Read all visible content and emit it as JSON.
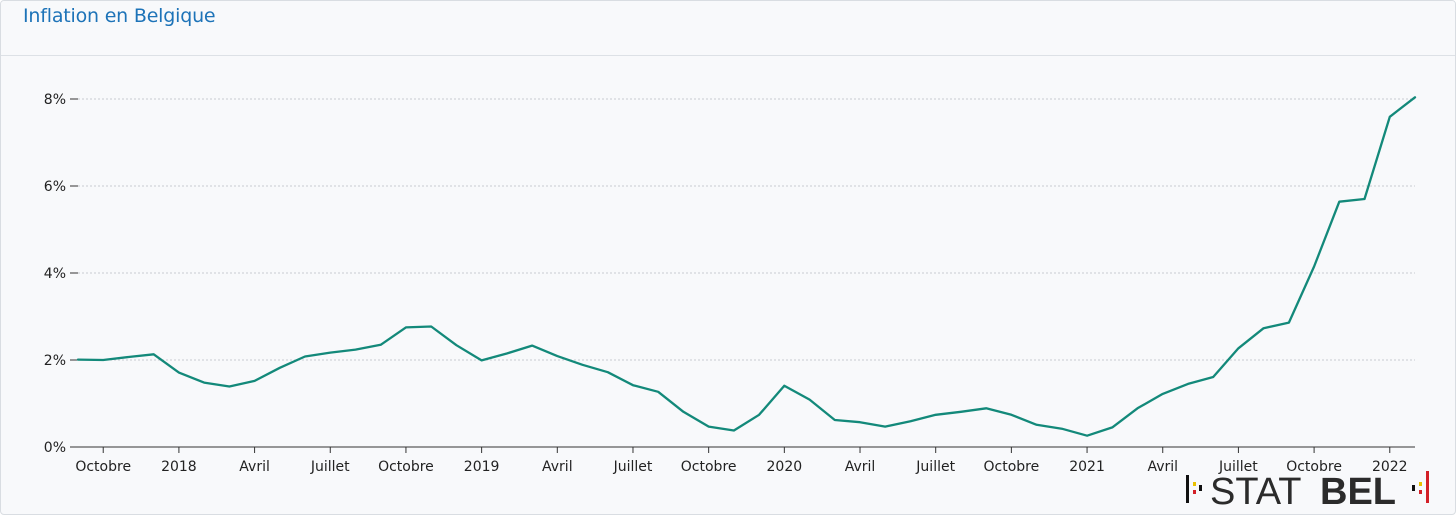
{
  "title": "Inflation en Belgique",
  "colors": {
    "line": "#13897a",
    "title": "#1d73b8",
    "grid": "#c9ccd0"
  },
  "logo": {
    "text_light": "STAT",
    "text_bold": "BEL"
  },
  "chart_data": {
    "type": "line",
    "title": "Inflation en Belgique",
    "xlabel": "",
    "ylabel": "",
    "ylim": [
      0,
      8
    ],
    "yticks": [
      {
        "value": 0,
        "label": "0%"
      },
      {
        "value": 2,
        "label": "2%"
      },
      {
        "value": 4,
        "label": "4%"
      },
      {
        "value": 6,
        "label": "6%"
      },
      {
        "value": 8,
        "label": "8%"
      }
    ],
    "xticks": [
      {
        "x": "2017-10",
        "label": "Octobre"
      },
      {
        "x": "2018-01",
        "label": "2018"
      },
      {
        "x": "2018-04",
        "label": "Avril"
      },
      {
        "x": "2018-07",
        "label": "Juillet"
      },
      {
        "x": "2018-10",
        "label": "Octobre"
      },
      {
        "x": "2019-01",
        "label": "2019"
      },
      {
        "x": "2019-04",
        "label": "Avril"
      },
      {
        "x": "2019-07",
        "label": "Juillet"
      },
      {
        "x": "2019-10",
        "label": "Octobre"
      },
      {
        "x": "2020-01",
        "label": "2020"
      },
      {
        "x": "2020-04",
        "label": "Avril"
      },
      {
        "x": "2020-07",
        "label": "Juillet"
      },
      {
        "x": "2020-10",
        "label": "Octobre"
      },
      {
        "x": "2021-01",
        "label": "2021"
      },
      {
        "x": "2021-04",
        "label": "Avril"
      },
      {
        "x": "2021-07",
        "label": "Juillet"
      },
      {
        "x": "2021-10",
        "label": "Octobre"
      },
      {
        "x": "2022-01",
        "label": "2022"
      }
    ],
    "grid": true,
    "series": [
      {
        "x": [
          "2017-09",
          "2017-10",
          "2017-11",
          "2017-12",
          "2018-01",
          "2018-02",
          "2018-03",
          "2018-04",
          "2018-05",
          "2018-06",
          "2018-07",
          "2018-08",
          "2018-09",
          "2018-10",
          "2018-11",
          "2018-12",
          "2019-01",
          "2019-02",
          "2019-03",
          "2019-04",
          "2019-05",
          "2019-06",
          "2019-07",
          "2019-08",
          "2019-09",
          "2019-10",
          "2019-11",
          "2019-12",
          "2020-01",
          "2020-02",
          "2020-03",
          "2020-04",
          "2020-05",
          "2020-06",
          "2020-07",
          "2020-08",
          "2020-09",
          "2020-10",
          "2020-11",
          "2020-12",
          "2021-01",
          "2021-02",
          "2021-03",
          "2021-04",
          "2021-05",
          "2021-06",
          "2021-07",
          "2021-08",
          "2021-09",
          "2021-10",
          "2021-11",
          "2021-12",
          "2022-01",
          "2022-02"
        ],
        "values": [
          2.01,
          2.0,
          2.07,
          2.13,
          1.71,
          1.48,
          1.39,
          1.52,
          1.82,
          2.08,
          2.17,
          2.24,
          2.35,
          2.75,
          2.77,
          2.34,
          1.99,
          2.15,
          2.33,
          2.09,
          1.89,
          1.72,
          1.42,
          1.27,
          0.81,
          0.47,
          0.38,
          0.74,
          1.41,
          1.09,
          0.62,
          0.57,
          0.47,
          0.59,
          0.74,
          0.81,
          0.89,
          0.74,
          0.51,
          0.42,
          0.26,
          0.45,
          0.89,
          1.22,
          1.45,
          1.61,
          2.27,
          2.73,
          2.86,
          4.15,
          5.64,
          5.7,
          7.59,
          8.04
        ]
      }
    ]
  }
}
